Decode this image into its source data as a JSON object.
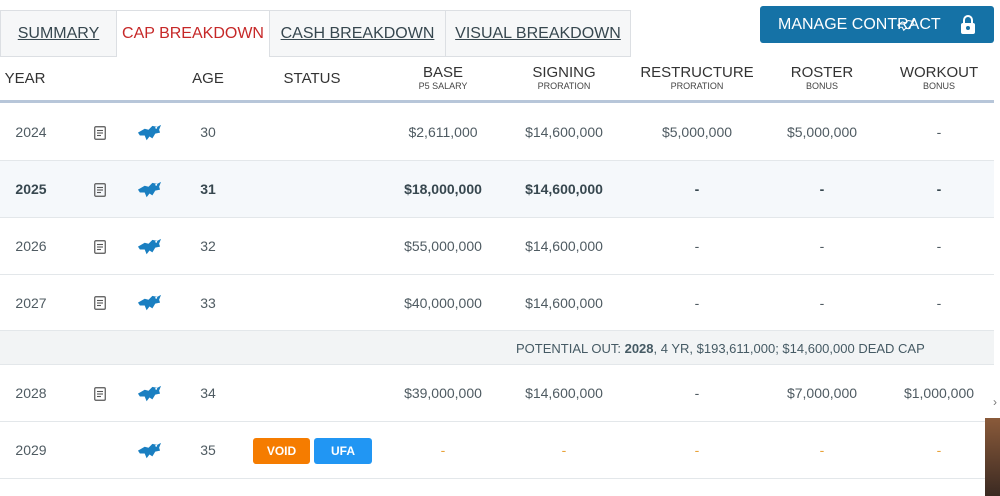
{
  "tabs": [
    {
      "label": "SUMMARY",
      "active": false
    },
    {
      "label": "CAP BREAKDOWN",
      "active": true
    },
    {
      "label": "CASH BREAKDOWN",
      "active": false
    },
    {
      "label": "VISUAL BREAKDOWN",
      "active": false
    }
  ],
  "manage_button": {
    "label": "MANAGE CONTRACT",
    "icons": [
      "lions-logo-icon",
      "lock-icon"
    ]
  },
  "columns": {
    "year": "YEAR",
    "age": "AGE",
    "status": "STATUS",
    "base": {
      "main": "BASE",
      "sub": "P5 SALARY"
    },
    "signing": {
      "main": "SIGNING",
      "sub": "PRORATION"
    },
    "restructure": {
      "main": "RESTRUCTURE",
      "sub": "PRORATION"
    },
    "roster": {
      "main": "ROSTER",
      "sub": "BONUS"
    },
    "workout": {
      "main": "WORKOUT",
      "sub": "BONUS"
    }
  },
  "rows": [
    {
      "year": "2024",
      "age": "30",
      "base": "$2,611,000",
      "signing": "$14,600,000",
      "restructure": "$5,000,000",
      "roster": "$5,000,000",
      "workout": "-"
    },
    {
      "year": "2025",
      "age": "31",
      "base": "$18,000,000",
      "signing": "$14,600,000",
      "restructure": "-",
      "roster": "-",
      "workout": "-"
    },
    {
      "year": "2026",
      "age": "32",
      "base": "$55,000,000",
      "signing": "$14,600,000",
      "restructure": "-",
      "roster": "-",
      "workout": "-"
    },
    {
      "year": "2027",
      "age": "33",
      "base": "$40,000,000",
      "signing": "$14,600,000",
      "restructure": "-",
      "roster": "-",
      "workout": "-"
    },
    {
      "year": "2028",
      "age": "34",
      "base": "$39,000,000",
      "signing": "$14,600,000",
      "restructure": "-",
      "roster": "$7,000,000",
      "workout": "$1,000,000"
    },
    {
      "year": "2029",
      "age": "35",
      "base": "-",
      "signing": "-",
      "restructure": "-",
      "roster": "-",
      "workout": "-",
      "badges": [
        "VOID",
        "UFA"
      ]
    }
  ],
  "potential_out": {
    "prefix": "POTENTIAL OUT: ",
    "year": "2028",
    "rest": ", 4 YR, $193,611,000; $14,600,000 DEAD CAP"
  },
  "colors": {
    "accent": "#1572a6",
    "active_tab": "#c62828",
    "void": "#f57c00",
    "ufa": "#2196f3",
    "lion": "#1a7fc1"
  }
}
